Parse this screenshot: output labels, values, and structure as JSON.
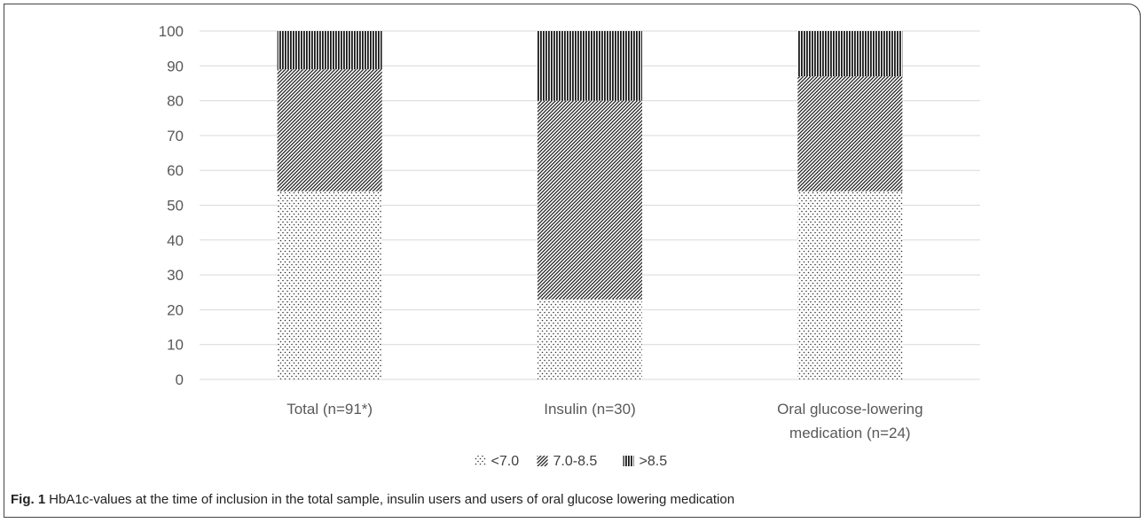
{
  "caption": {
    "label": "Fig. 1",
    "text": "HbA1c-values at the time of inclusion in the total sample, insulin users and users of oral glucose lowering medication"
  },
  "chart_data": {
    "type": "bar",
    "stacked": true,
    "title": "",
    "xlabel": "",
    "ylabel": "",
    "ylim": [
      0,
      100
    ],
    "yticks": [
      0,
      10,
      20,
      30,
      40,
      50,
      60,
      70,
      80,
      90,
      100
    ],
    "grid": true,
    "legend_position": "bottom",
    "categories": [
      [
        "Total (n=91*)"
      ],
      [
        "Insulin (n=30)"
      ],
      [
        "Oral glucose-lowering",
        "medication (n=24)"
      ]
    ],
    "series": [
      {
        "name": "<7.0",
        "pattern": "dots",
        "values": [
          54,
          23,
          54
        ]
      },
      {
        "name": "7.0-8.5",
        "pattern": "diagonal",
        "values": [
          35,
          57,
          33
        ]
      },
      {
        "name": ">8.5",
        "pattern": "vertical",
        "values": [
          11,
          20,
          13
        ]
      }
    ],
    "colors": {
      "pattern": "#1a1a1a",
      "grid": "#d9d9d9",
      "text": "#595959"
    }
  }
}
